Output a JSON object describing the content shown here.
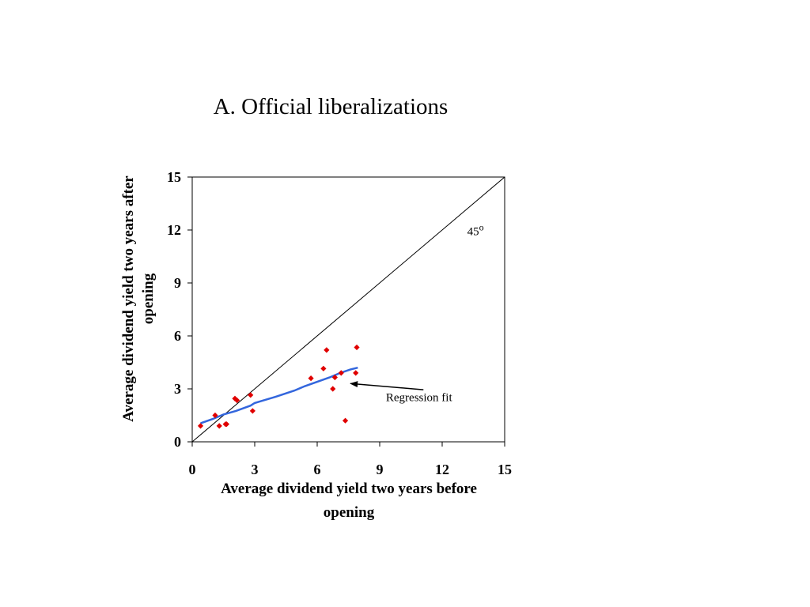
{
  "chart_data": {
    "type": "scatter",
    "title": "A. Official liberalizations",
    "xlabel_lines": [
      "Average dividend yield two years before",
      "opening"
    ],
    "ylabel_lines": [
      "Average dividend yield two years after",
      "opening"
    ],
    "xlim": [
      0,
      15
    ],
    "ylim": [
      0,
      15
    ],
    "x_ticks": [
      0,
      3,
      6,
      9,
      12,
      15
    ],
    "y_ticks": [
      0,
      3,
      6,
      9,
      12,
      15
    ],
    "grid": false,
    "series": [
      {
        "marker": "diamond",
        "color": "#e00000",
        "points": [
          {
            "x": 0.4,
            "y": 0.9
          },
          {
            "x": 1.1,
            "y": 1.5
          },
          {
            "x": 1.3,
            "y": 0.9
          },
          {
            "x": 1.6,
            "y": 1.0
          },
          {
            "x": 1.65,
            "y": 1.0
          },
          {
            "x": 2.05,
            "y": 2.45
          },
          {
            "x": 2.15,
            "y": 2.35
          },
          {
            "x": 2.8,
            "y": 2.65
          },
          {
            "x": 2.9,
            "y": 1.75
          },
          {
            "x": 5.7,
            "y": 3.6
          },
          {
            "x": 6.3,
            "y": 4.15
          },
          {
            "x": 6.45,
            "y": 5.2
          },
          {
            "x": 6.75,
            "y": 3.0
          },
          {
            "x": 6.85,
            "y": 3.65
          },
          {
            "x": 7.15,
            "y": 3.9
          },
          {
            "x": 7.35,
            "y": 1.2
          },
          {
            "x": 7.85,
            "y": 3.9
          },
          {
            "x": 7.9,
            "y": 5.35
          }
        ]
      }
    ],
    "regression_fit": {
      "color": "#3366dd",
      "points": [
        {
          "x": 0.4,
          "y": 1.05
        },
        {
          "x": 1.0,
          "y": 1.3
        },
        {
          "x": 1.5,
          "y": 1.55
        },
        {
          "x": 2.1,
          "y": 1.75
        },
        {
          "x": 2.8,
          "y": 2.05
        },
        {
          "x": 3.0,
          "y": 2.2
        },
        {
          "x": 4.0,
          "y": 2.55
        },
        {
          "x": 4.9,
          "y": 2.9
        },
        {
          "x": 5.4,
          "y": 3.15
        },
        {
          "x": 6.0,
          "y": 3.4
        },
        {
          "x": 6.6,
          "y": 3.65
        },
        {
          "x": 7.1,
          "y": 3.9
        },
        {
          "x": 7.6,
          "y": 4.1
        },
        {
          "x": 7.95,
          "y": 4.2
        }
      ]
    },
    "reference_line": {
      "from": [
        0,
        0
      ],
      "to": [
        15,
        15
      ],
      "color": "#000000"
    },
    "annotations": {
      "degree_label": "45",
      "degree_sup": "o",
      "degree_pos": [
        13.2,
        11.7
      ],
      "regression_label": "Regression fit",
      "regression_label_pos": [
        9.3,
        2.3
      ],
      "arrow_from": [
        11.1,
        2.95
      ],
      "arrow_to": [
        7.6,
        3.3
      ]
    }
  }
}
